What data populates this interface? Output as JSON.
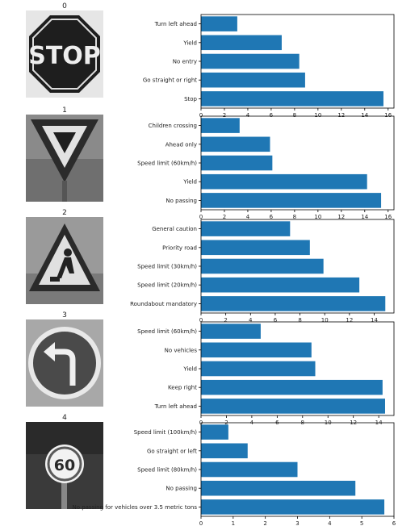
{
  "colors": {
    "bar": "#1f77b4",
    "axis": "#000000",
    "text": "#222222"
  },
  "panels": [
    {
      "image_title": "0",
      "image_icon": "stop-sign-image",
      "chart_data": {
        "type": "bar",
        "orientation": "horizontal",
        "categories": [
          "Stop",
          "Go straight or right",
          "No entry",
          "Yield",
          "Turn left ahead"
        ],
        "values": [
          15.6,
          8.9,
          8.4,
          6.9,
          3.1
        ],
        "xlim": [
          0,
          16.5
        ],
        "xticks": [
          "0",
          "2",
          "4",
          "6",
          "8",
          "10",
          "12",
          "14",
          "16"
        ]
      }
    },
    {
      "image_title": "1",
      "image_icon": "yield-sign-image",
      "chart_data": {
        "type": "bar",
        "orientation": "horizontal",
        "categories": [
          "No passing",
          "Yield",
          "Speed limit (60km/h)",
          "Ahead only",
          "Children crossing"
        ],
        "values": [
          15.4,
          14.2,
          6.1,
          5.9,
          3.3
        ],
        "xlim": [
          0,
          16.5
        ],
        "xticks": [
          "0",
          "2",
          "4",
          "6",
          "8",
          "10",
          "12",
          "14",
          "16"
        ]
      }
    },
    {
      "image_title": "2",
      "image_icon": "road-work-sign-image",
      "chart_data": {
        "type": "bar",
        "orientation": "horizontal",
        "categories": [
          "Roundabout mandatory",
          "Speed limit (20km/h)",
          "Speed limit (30km/h)",
          "Priority road",
          "General caution"
        ],
        "values": [
          14.9,
          12.8,
          9.9,
          8.8,
          7.2
        ],
        "xlim": [
          0,
          15.6
        ],
        "xticks": [
          "0",
          "2",
          "4",
          "6",
          "8",
          "10",
          "12",
          "14"
        ]
      }
    },
    {
      "image_title": "3",
      "image_icon": "turn-left-ahead-sign-image",
      "chart_data": {
        "type": "bar",
        "orientation": "horizontal",
        "categories": [
          "Turn left ahead",
          "Keep right",
          "Yield",
          "No vehicles",
          "Speed limit (60km/h)"
        ],
        "values": [
          14.5,
          14.3,
          9.0,
          8.7,
          4.7
        ],
        "xlim": [
          0,
          15.2
        ],
        "xticks": [
          "0",
          "2",
          "4",
          "6",
          "8",
          "10",
          "12",
          "14"
        ]
      }
    },
    {
      "image_title": "4",
      "image_icon": "speed-limit-60-sign-image",
      "chart_data": {
        "type": "bar",
        "orientation": "horizontal",
        "categories": [
          "No passing for vehicles over 3.5 metric tons",
          "No passing",
          "Speed limit (80km/h)",
          "Go straight or left",
          "Speed limit (100km/h)"
        ],
        "values": [
          5.7,
          4.8,
          3.0,
          1.45,
          0.85
        ],
        "xlim": [
          0,
          6.0
        ],
        "xticks": [
          "0",
          "1",
          "2",
          "3",
          "4",
          "5",
          "6"
        ]
      }
    }
  ]
}
